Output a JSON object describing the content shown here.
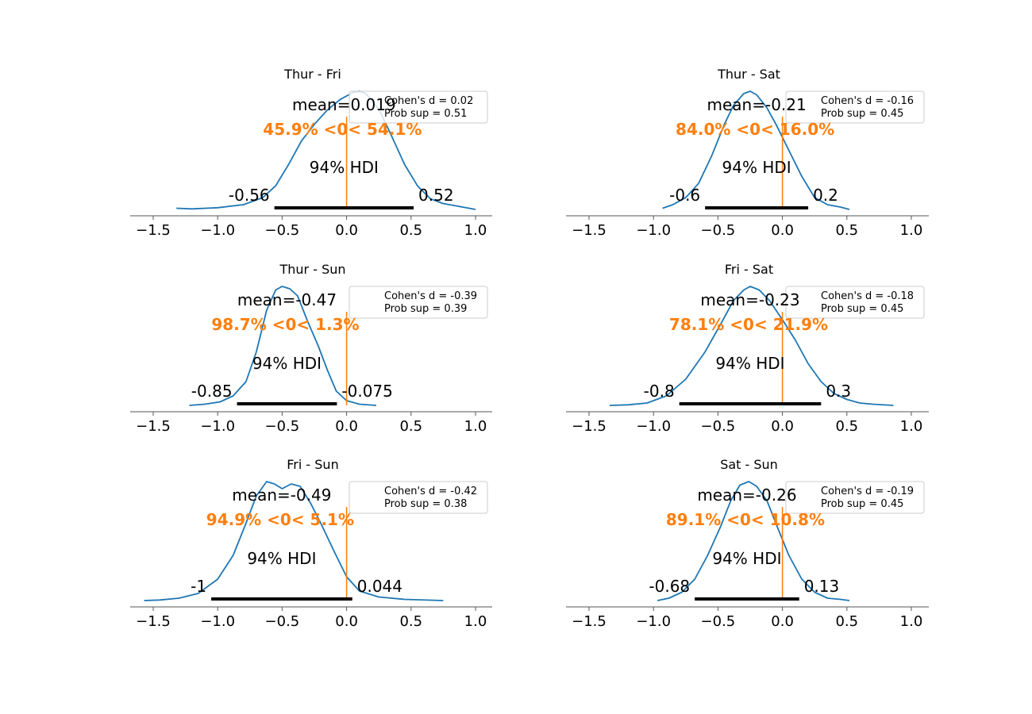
{
  "chart_data": [
    {
      "type": "area",
      "title": "Thur - Fri",
      "xlim": [
        -1.7,
        1.15
      ],
      "xticks": [
        -1.5,
        -1.0,
        -0.5,
        0.0,
        0.5,
        1.0
      ],
      "xtick_labels": [
        "−1.5",
        "−1.0",
        "−0.5",
        "0.0",
        "0.5",
        "1.0"
      ],
      "density_x": [
        -1.32,
        -1.2,
        -1.0,
        -0.8,
        -0.65,
        -0.55,
        -0.45,
        -0.35,
        -0.25,
        -0.15,
        -0.05,
        0.05,
        0.1,
        0.15,
        0.25,
        0.35,
        0.45,
        0.55,
        0.65,
        0.75,
        0.85,
        1.0
      ],
      "density_y": [
        0.01,
        0.005,
        0.015,
        0.04,
        0.1,
        0.2,
        0.38,
        0.58,
        0.72,
        0.84,
        0.93,
        0.99,
        1.0,
        0.98,
        0.85,
        0.62,
        0.38,
        0.2,
        0.09,
        0.05,
        0.03,
        0.0
      ],
      "mean_text": "mean=0.019",
      "ref_val": 0,
      "prob_text": "45.9% <0< 54.1%",
      "hdi_text": "94% HDI",
      "hdi": [
        -0.56,
        0.52
      ],
      "hdi_labels": [
        "-0.56",
        "0.52"
      ],
      "legend": [
        "Cohen's d = 0.02",
        "Prob sup = 0.51"
      ]
    },
    {
      "type": "area",
      "title": "Thur - Sat",
      "xlim": [
        -1.7,
        1.15
      ],
      "xticks": [
        -1.5,
        -1.0,
        -0.5,
        0.0,
        0.5,
        1.0
      ],
      "xtick_labels": [
        "−1.5",
        "−1.0",
        "−0.5",
        "0.0",
        "0.5",
        "1.0"
      ],
      "density_x": [
        -0.93,
        -0.85,
        -0.75,
        -0.65,
        -0.55,
        -0.45,
        -0.38,
        -0.3,
        -0.25,
        -0.2,
        -0.12,
        -0.05,
        0.05,
        0.15,
        0.25,
        0.35,
        0.45,
        0.52
      ],
      "density_y": [
        0.01,
        0.04,
        0.1,
        0.22,
        0.45,
        0.72,
        0.88,
        0.98,
        1.0,
        0.97,
        0.86,
        0.72,
        0.5,
        0.28,
        0.1,
        0.04,
        0.02,
        0.0
      ],
      "mean_text": "mean=-0.21",
      "ref_val": 0,
      "prob_text": "84.0% <0< 16.0%",
      "hdi_text": "94% HDI",
      "hdi": [
        -0.6,
        0.2
      ],
      "hdi_labels": [
        "-0.6",
        "0.2"
      ],
      "legend": [
        "Cohen's d = -0.16",
        "Prob sup = 0.45"
      ]
    },
    {
      "type": "area",
      "title": "Thur - Sun",
      "xlim": [
        -1.7,
        1.15
      ],
      "xticks": [
        -1.5,
        -1.0,
        -0.5,
        0.0,
        0.5,
        1.0
      ],
      "xtick_labels": [
        "−1.5",
        "−1.0",
        "−0.5",
        "0.0",
        "0.5",
        "1.0"
      ],
      "density_x": [
        -1.22,
        -1.1,
        -0.98,
        -0.88,
        -0.78,
        -0.7,
        -0.62,
        -0.55,
        -0.5,
        -0.44,
        -0.38,
        -0.3,
        -0.22,
        -0.15,
        -0.08,
        0.0,
        0.1,
        0.23
      ],
      "density_y": [
        0.0,
        0.01,
        0.03,
        0.08,
        0.2,
        0.45,
        0.8,
        0.97,
        1.0,
        0.98,
        0.92,
        0.7,
        0.5,
        0.3,
        0.12,
        0.04,
        0.01,
        0.0
      ],
      "mean_text": "mean=-0.47",
      "ref_val": 0,
      "prob_text": "98.7% <0< 1.3%",
      "hdi_text": "94% HDI",
      "hdi": [
        -0.85,
        -0.075
      ],
      "hdi_labels": [
        "-0.85",
        "-0.075"
      ],
      "legend": [
        "Cohen's d = -0.39",
        "Prob sup = 0.39"
      ]
    },
    {
      "type": "area",
      "title": "Fri - Sat",
      "xlim": [
        -1.7,
        1.15
      ],
      "xticks": [
        -1.5,
        -1.0,
        -0.5,
        0.0,
        0.5,
        1.0
      ],
      "xtick_labels": [
        "−1.5",
        "−1.0",
        "−0.5",
        "0.0",
        "0.5",
        "1.0"
      ],
      "density_x": [
        -1.34,
        -1.2,
        -1.05,
        -0.9,
        -0.75,
        -0.6,
        -0.48,
        -0.38,
        -0.3,
        -0.25,
        -0.18,
        -0.1,
        0.0,
        0.1,
        0.2,
        0.3,
        0.4,
        0.5,
        0.6,
        0.7,
        0.86
      ],
      "density_y": [
        0.0,
        0.005,
        0.02,
        0.08,
        0.22,
        0.45,
        0.68,
        0.88,
        0.97,
        1.0,
        0.97,
        0.88,
        0.72,
        0.55,
        0.35,
        0.2,
        0.1,
        0.05,
        0.02,
        0.01,
        0.0
      ],
      "mean_text": "mean=-0.23",
      "ref_val": 0,
      "prob_text": "78.1% <0< 21.9%",
      "hdi_text": "94% HDI",
      "hdi": [
        -0.8,
        0.3
      ],
      "hdi_labels": [
        "-0.8",
        "0.3"
      ],
      "legend": [
        "Cohen's d = -0.18",
        "Prob sup = 0.45"
      ]
    },
    {
      "type": "area",
      "title": "Fri - Sun",
      "xlim": [
        -1.7,
        1.15
      ],
      "xticks": [
        -1.5,
        -1.0,
        -0.5,
        0.0,
        0.5,
        1.0
      ],
      "xtick_labels": [
        "−1.5",
        "−1.0",
        "−0.5",
        "0.0",
        "0.5",
        "1.0"
      ],
      "density_x": [
        -1.57,
        -1.45,
        -1.3,
        -1.15,
        -1.0,
        -0.88,
        -0.78,
        -0.7,
        -0.62,
        -0.56,
        -0.5,
        -0.43,
        -0.36,
        -0.28,
        -0.2,
        -0.1,
        0.0,
        0.1,
        0.25,
        0.45,
        0.75
      ],
      "density_y": [
        0.0,
        0.005,
        0.02,
        0.06,
        0.18,
        0.38,
        0.65,
        0.88,
        1.0,
        0.98,
        0.94,
        0.98,
        0.96,
        0.82,
        0.65,
        0.42,
        0.2,
        0.08,
        0.03,
        0.01,
        0.0
      ],
      "mean_text": "mean=-0.49",
      "ref_val": 0,
      "prob_text": "94.9% <0< 5.1%",
      "hdi_text": "94% HDI",
      "hdi": [
        -1.05,
        0.044
      ],
      "hdi_labels": [
        "-1",
        "0.044"
      ],
      "legend": [
        "Cohen's d = -0.42",
        "Prob sup = 0.38"
      ]
    },
    {
      "type": "area",
      "title": "Sat - Sun",
      "xlim": [
        -1.7,
        1.15
      ],
      "xticks": [
        -1.5,
        -1.0,
        -0.5,
        0.0,
        0.5,
        1.0
      ],
      "xtick_labels": [
        "−1.5",
        "−1.0",
        "−0.5",
        "0.0",
        "0.5",
        "1.0"
      ],
      "density_x": [
        -0.97,
        -0.88,
        -0.78,
        -0.68,
        -0.58,
        -0.48,
        -0.4,
        -0.33,
        -0.26,
        -0.2,
        -0.12,
        -0.04,
        0.05,
        0.15,
        0.25,
        0.35,
        0.45,
        0.52
      ],
      "density_y": [
        0.0,
        0.02,
        0.07,
        0.18,
        0.38,
        0.62,
        0.84,
        0.97,
        1.0,
        0.96,
        0.84,
        0.62,
        0.38,
        0.18,
        0.07,
        0.02,
        0.01,
        0.0
      ],
      "mean_text": "mean=-0.26",
      "ref_val": 0,
      "prob_text": "89.1% <0< 10.8%",
      "hdi_text": "94% HDI",
      "hdi": [
        -0.68,
        0.13
      ],
      "hdi_labels": [
        "-0.68",
        "0.13"
      ],
      "legend": [
        "Cohen's d = -0.19",
        "Prob sup = 0.45"
      ]
    }
  ],
  "colors": {
    "density": "#1f77b4",
    "reference": "#ff7f0e",
    "hdi": "#000000",
    "axis": "#555555",
    "legend_border": "#cccccc"
  }
}
